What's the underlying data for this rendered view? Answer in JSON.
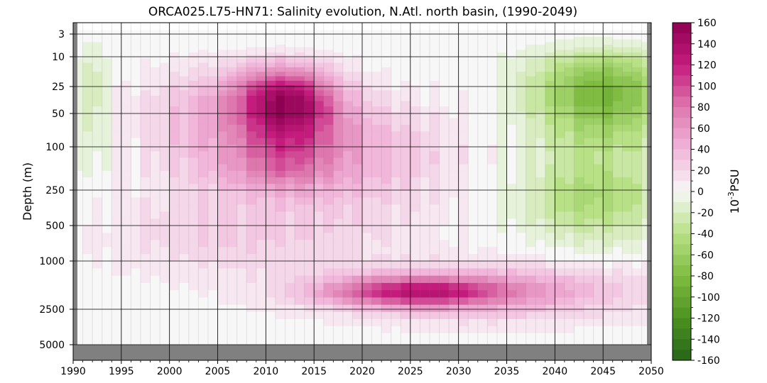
{
  "chart_data": {
    "type": "heatmap",
    "subtype": "filled-contour",
    "title": "ORCA025.L75-HN71: Salinity evolution, N.Atl. north basin, (1990-2049)",
    "xlabel": "",
    "ylabel": "Depth (m)",
    "xlim": [
      1990,
      2050
    ],
    "x_ticks": [
      "1990",
      "1995",
      "2000",
      "2005",
      "2010",
      "2015",
      "2020",
      "2025",
      "2030",
      "2035",
      "2040",
      "2045",
      "2050"
    ],
    "y_ticks": [
      "3",
      "10",
      "25",
      "50",
      "100",
      "250",
      "500",
      "1000",
      "2500",
      "5000"
    ],
    "y_tick_values": [
      3,
      10,
      25,
      50,
      100,
      250,
      500,
      1000,
      2500,
      5000
    ],
    "y_scale": "nonlinear (stretched upper ocean)",
    "y_inverted": true,
    "grid": true,
    "colorbar": {
      "label": "10⁻³PSU",
      "range": [
        -160,
        160
      ],
      "ticks": [
        "160",
        "140",
        "120",
        "100",
        "80",
        "60",
        "40",
        "20",
        "0",
        "-20",
        "-40",
        "-60",
        "-80",
        "-100",
        "-120",
        "-140",
        "-160"
      ],
      "colormap": "PiYG (green negative, magenta positive)",
      "levels": 32
    },
    "features": [
      {
        "name": "upper-ocean salinification",
        "center_year": 2012,
        "center_depth_m": 40,
        "peak": 150
      },
      {
        "name": "intermediate salty layer",
        "center_year": 2011,
        "center_depth_m": 160,
        "peak": 110
      },
      {
        "name": "deep salty core",
        "center_year": 2025,
        "center_depth_m": 1800,
        "peak": 90
      },
      {
        "name": "upper-ocean freshening",
        "center_year": 2044,
        "center_depth_m": 30,
        "peak": -85
      }
    ],
    "masked_color": "#808080"
  }
}
